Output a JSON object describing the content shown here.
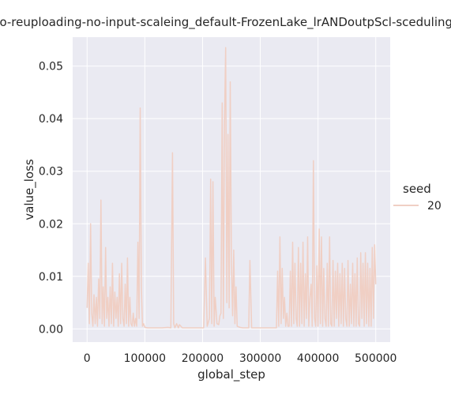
{
  "chart_data": {
    "type": "line",
    "title": "o-reuploading-no-input-scaleing_default-FrozenLake_lrANDoutpScl-sceduling_",
    "xlabel": "global_step",
    "ylabel": "value_loss",
    "xlim": [
      -25000,
      525000
    ],
    "ylim": [
      -0.0025,
      0.0555
    ],
    "xticks": [
      0,
      100000,
      200000,
      300000,
      400000,
      500000
    ],
    "xtick_labels": [
      "0",
      "100000",
      "200000",
      "300000",
      "400000",
      "500000"
    ],
    "yticks": [
      0.0,
      0.01,
      0.02,
      0.03,
      0.04,
      0.05
    ],
    "ytick_labels": [
      "0.00",
      "0.01",
      "0.02",
      "0.03",
      "0.04",
      "0.05"
    ],
    "grid": true,
    "background": "#eaeaf2",
    "legend": {
      "title": "seed",
      "placement": "right",
      "entries": [
        "20"
      ]
    },
    "series": [
      {
        "name": "20",
        "color": "#f0cfc4",
        "x": [
          0,
          2000,
          4000,
          6000,
          8000,
          10000,
          12000,
          14000,
          16000,
          18000,
          20000,
          22000,
          24000,
          26000,
          28000,
          30000,
          32000,
          34000,
          36000,
          38000,
          40000,
          42000,
          44000,
          46000,
          48000,
          50000,
          52000,
          54000,
          56000,
          58000,
          60000,
          62000,
          64000,
          66000,
          68000,
          70000,
          72000,
          74000,
          76000,
          78000,
          80000,
          82000,
          84000,
          86000,
          88000,
          90000,
          92000,
          94000,
          96000,
          98000,
          100000,
          105000,
          110000,
          120000,
          130000,
          140000,
          145000,
          148000,
          150000,
          152000,
          155000,
          158000,
          160000,
          165000,
          170000,
          180000,
          190000,
          200000,
          202000,
          205000,
          208000,
          212000,
          214000,
          216000,
          218000,
          220000,
          222000,
          225000,
          228000,
          230000,
          232000,
          234000,
          236000,
          238000,
          240000,
          242000,
          244000,
          246000,
          248000,
          250000,
          252000,
          254000,
          256000,
          258000,
          260000,
          265000,
          270000,
          275000,
          280000,
          282000,
          285000,
          290000,
          300000,
          310000,
          320000,
          325000,
          328000,
          330000,
          332000,
          334000,
          336000,
          338000,
          340000,
          342000,
          344000,
          346000,
          348000,
          350000,
          352000,
          354000,
          356000,
          358000,
          360000,
          362000,
          364000,
          366000,
          368000,
          370000,
          372000,
          374000,
          376000,
          378000,
          380000,
          382000,
          384000,
          386000,
          388000,
          390000,
          392000,
          394000,
          396000,
          398000,
          400000,
          402000,
          404000,
          406000,
          408000,
          410000,
          412000,
          414000,
          416000,
          418000,
          420000,
          422000,
          424000,
          426000,
          428000,
          430000,
          432000,
          434000,
          436000,
          438000,
          440000,
          442000,
          444000,
          446000,
          448000,
          450000,
          452000,
          454000,
          456000,
          458000,
          460000,
          462000,
          464000,
          466000,
          468000,
          470000,
          472000,
          474000,
          476000,
          478000,
          480000,
          482000,
          484000,
          486000,
          488000,
          490000,
          492000,
          494000,
          496000,
          498000,
          500000
        ],
        "values": [
          0.004,
          0.0125,
          0.001,
          0.02,
          0.003,
          0.0005,
          0.0065,
          0.001,
          0.006,
          0.0005,
          0.0095,
          0.002,
          0.0245,
          0.001,
          0.008,
          0.0005,
          0.0155,
          0.002,
          0.006,
          0.0005,
          0.008,
          0.001,
          0.0125,
          0.0005,
          0.007,
          0.002,
          0.006,
          0.0005,
          0.0105,
          0.001,
          0.0125,
          0.002,
          0.0005,
          0.0085,
          0.001,
          0.0135,
          0.0005,
          0.006,
          0.001,
          0.0005,
          0.003,
          0.0005,
          0.002,
          0.0005,
          0.0165,
          0.002,
          0.042,
          0.008,
          0.0005,
          0.001,
          0.0003,
          0.0002,
          0.0002,
          0.0002,
          0.0002,
          0.0003,
          0.0002,
          0.0335,
          0.001,
          0.0002,
          0.001,
          0.0002,
          0.0008,
          0.0002,
          0.0002,
          0.0002,
          0.0002,
          0.0002,
          0.0002,
          0.0135,
          0.0005,
          0.002,
          0.0285,
          0.001,
          0.028,
          0.0005,
          0.006,
          0.001,
          0.0008,
          0.0025,
          0.003,
          0.043,
          0.002,
          0.039,
          0.0535,
          0.005,
          0.037,
          0.004,
          0.047,
          0.0125,
          0.0025,
          0.015,
          0.001,
          0.008,
          0.0005,
          0.0003,
          0.0002,
          0.0002,
          0.0002,
          0.013,
          0.0002,
          0.0002,
          0.0002,
          0.0002,
          0.0002,
          0.0002,
          0.0002,
          0.011,
          0.0005,
          0.0175,
          0.001,
          0.0115,
          0.002,
          0.006,
          0.0005,
          0.003,
          0.0005,
          0.0005,
          0.011,
          0.0005,
          0.0165,
          0.001,
          0.0125,
          0.002,
          0.0005,
          0.0155,
          0.0005,
          0.0125,
          0.001,
          0.0165,
          0.0005,
          0.0105,
          0.002,
          0.0175,
          0.0005,
          0.006,
          0.0085,
          0.0005,
          0.032,
          0.002,
          0.0005,
          0.012,
          0.0005,
          0.019,
          0.001,
          0.0175,
          0.0005,
          0.0115,
          0.002,
          0.0005,
          0.0125,
          0.0005,
          0.0175,
          0.001,
          0.0005,
          0.013,
          0.0005,
          0.011,
          0.002,
          0.0125,
          0.0005,
          0.0105,
          0.001,
          0.0125,
          0.0005,
          0.0115,
          0.002,
          0.0005,
          0.013,
          0.0005,
          0.0085,
          0.001,
          0.0125,
          0.0005,
          0.0105,
          0.0005,
          0.0135,
          0.001,
          0.0005,
          0.0145,
          0.002,
          0.0125,
          0.0005,
          0.0145,
          0.001,
          0.0125,
          0.0005,
          0.0115,
          0.0005,
          0.0155,
          0.002,
          0.016,
          0.0085
        ]
      }
    ]
  }
}
